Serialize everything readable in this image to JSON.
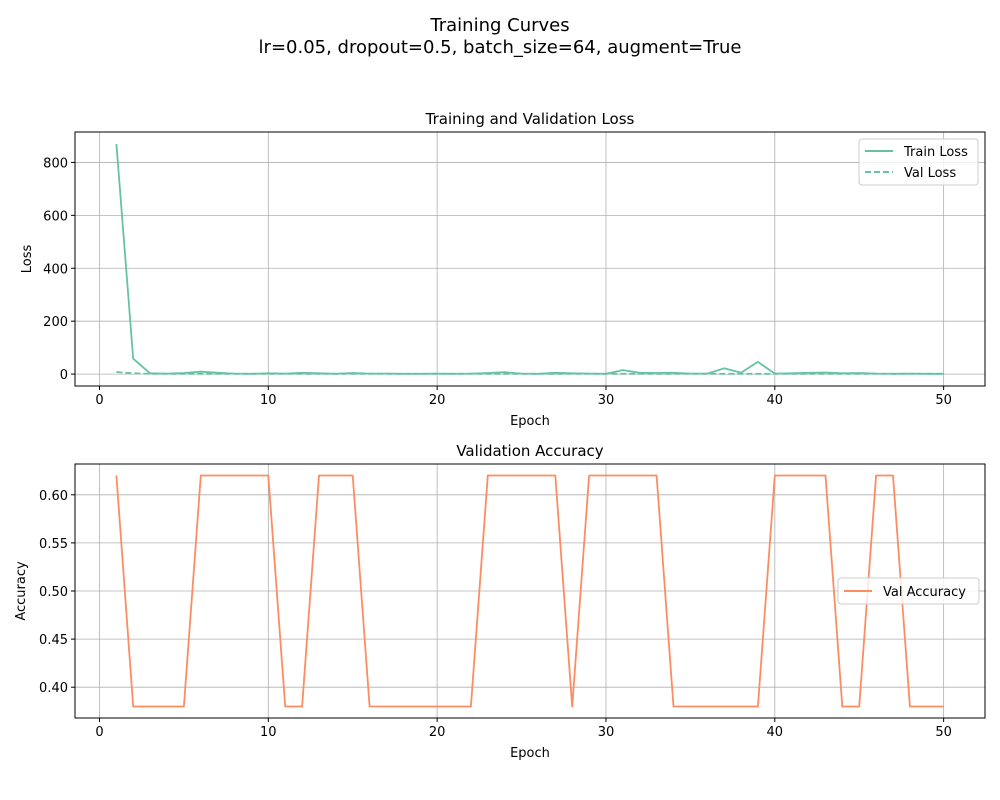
{
  "figure": {
    "title": "Training Curves",
    "subtitle": "lr=0.05, dropout=0.5, batch_size=64, augment=True"
  },
  "colors": {
    "loss": "#66c2a5",
    "accuracy": "#fc8d62",
    "grid": "#b0b0b0",
    "axis": "#000000"
  },
  "chart_data": [
    {
      "type": "line",
      "title": "Training and Validation Loss",
      "xlabel": "Epoch",
      "ylabel": "Loss",
      "xlim": [
        -1.45,
        52.45
      ],
      "ylim": [
        -45,
        915
      ],
      "xticks": [
        0,
        10,
        20,
        30,
        40,
        50
      ],
      "yticks": [
        0,
        200,
        400,
        600,
        800
      ],
      "grid": true,
      "legend": "top-right",
      "x": [
        1,
        2,
        3,
        4,
        5,
        6,
        7,
        8,
        9,
        10,
        11,
        12,
        13,
        14,
        15,
        16,
        17,
        18,
        19,
        20,
        21,
        22,
        23,
        24,
        25,
        26,
        27,
        28,
        29,
        30,
        31,
        32,
        33,
        34,
        35,
        36,
        37,
        38,
        39,
        40,
        41,
        42,
        43,
        44,
        45,
        46,
        47,
        48,
        49,
        50
      ],
      "series": [
        {
          "name": "Train Loss",
          "style": "solid",
          "values": [
            870,
            58,
            3,
            2,
            4,
            9,
            5,
            2,
            1,
            3,
            2,
            5,
            3,
            1,
            4,
            2,
            2,
            1,
            1,
            2,
            1,
            2,
            4,
            7,
            2,
            1,
            5,
            3,
            2,
            1,
            15,
            5,
            4,
            5,
            2,
            2,
            22,
            5,
            46,
            2,
            3,
            5,
            6,
            3,
            4,
            2,
            1,
            2,
            1,
            1
          ]
        },
        {
          "name": "Val Loss",
          "style": "dashed",
          "values": [
            8,
            3,
            1,
            1,
            1,
            1,
            1,
            1,
            1,
            1,
            1,
            1,
            1,
            1,
            1,
            1,
            1,
            1,
            1,
            1,
            1,
            1,
            1,
            1,
            1,
            1,
            1,
            1,
            1,
            1,
            1,
            1,
            1,
            1,
            1,
            1,
            1,
            1,
            1,
            1,
            1,
            1,
            1,
            1,
            1,
            1,
            1,
            1,
            1,
            1
          ]
        }
      ]
    },
    {
      "type": "line",
      "title": "Validation Accuracy",
      "xlabel": "Epoch",
      "ylabel": "Accuracy",
      "xlim": [
        -1.45,
        52.45
      ],
      "ylim": [
        0.368,
        0.632
      ],
      "xticks": [
        0,
        10,
        20,
        30,
        40,
        50
      ],
      "yticks": [
        0.4,
        0.45,
        0.5,
        0.55,
        0.6
      ],
      "grid": true,
      "legend": "center-right",
      "x": [
        1,
        2,
        3,
        4,
        5,
        6,
        7,
        8,
        9,
        10,
        11,
        12,
        13,
        14,
        15,
        16,
        17,
        18,
        19,
        20,
        21,
        22,
        23,
        24,
        25,
        26,
        27,
        28,
        29,
        30,
        31,
        32,
        33,
        34,
        35,
        36,
        37,
        38,
        39,
        40,
        41,
        42,
        43,
        44,
        45,
        46,
        47,
        48,
        49,
        50
      ],
      "series": [
        {
          "name": "Val Accuracy",
          "style": "solid",
          "values": [
            0.62,
            0.38,
            0.38,
            0.38,
            0.38,
            0.62,
            0.62,
            0.62,
            0.62,
            0.62,
            0.38,
            0.38,
            0.62,
            0.62,
            0.62,
            0.38,
            0.38,
            0.38,
            0.38,
            0.38,
            0.38,
            0.38,
            0.62,
            0.62,
            0.62,
            0.62,
            0.62,
            0.38,
            0.62,
            0.62,
            0.62,
            0.62,
            0.62,
            0.38,
            0.38,
            0.38,
            0.38,
            0.38,
            0.38,
            0.62,
            0.62,
            0.62,
            0.62,
            0.38,
            0.38,
            0.62,
            0.62,
            0.38,
            0.38,
            0.38
          ]
        }
      ]
    }
  ]
}
